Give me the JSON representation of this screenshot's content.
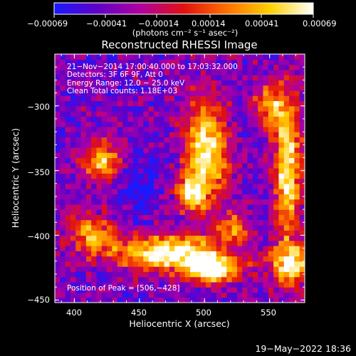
{
  "chart_data": {
    "type": "heatmap",
    "title": "Reconstructed RHESSI Image",
    "xlabel": "Heliocentric X (arcsec)",
    "ylabel": "Heliocentric Y (arcsec)",
    "xlim": [
      385,
      577
    ],
    "ylim": [
      -452,
      -260
    ],
    "x_ticks": [
      400,
      450,
      500,
      550
    ],
    "y_ticks": [
      -450,
      -400,
      -350,
      -300
    ],
    "x_tick_labels": [
      "400",
      "450",
      "500",
      "550"
    ],
    "y_tick_labels": [
      "−450",
      "−400",
      "−350",
      "−300"
    ],
    "colorbar": {
      "ticks": [
        -0.00069,
        -0.00041,
        -0.00014,
        0.00014,
        0.00041,
        0.00069
      ],
      "tick_labels": [
        "−0.00069",
        "−0.00041",
        "−0.00014",
        "0.00014",
        "0.00041",
        "0.00069"
      ],
      "units_label": "(photons cm⁻² s⁻¹ asec⁻²)",
      "colormap": [
        "#1a1aff",
        "#6000c8",
        "#b000a0",
        "#e01010",
        "#ff7000",
        "#ffd000",
        "#ffffff"
      ]
    },
    "annotations": [
      "21−Nov−2014 17:00:40.000 to 17:03:32.000",
      "Detectors: 3F 6F 9F, Att 0",
      "Energy Range: 12.0 − 25.0 keV",
      "Clean     Total counts: 1.18E+03"
    ],
    "peak_label": "Position of Peak = [506,−428]",
    "peak_position": [
      506,
      -428
    ],
    "emission_regions": [
      {
        "cx": 500,
        "cy": -335,
        "rx": 16,
        "ry": 38,
        "level": 0.9
      },
      {
        "cx": 488,
        "cy": -368,
        "rx": 12,
        "ry": 14,
        "level": 0.7
      },
      {
        "cx": 470,
        "cy": -415,
        "rx": 42,
        "ry": 14,
        "level": 0.95
      },
      {
        "cx": 505,
        "cy": -428,
        "rx": 20,
        "ry": 10,
        "level": 1.0
      },
      {
        "cx": 420,
        "cy": -345,
        "rx": 14,
        "ry": 16,
        "level": 0.75
      },
      {
        "cx": 412,
        "cy": -400,
        "rx": 18,
        "ry": 14,
        "level": 0.65
      },
      {
        "cx": 562,
        "cy": -350,
        "rx": 10,
        "ry": 55,
        "level": 0.9
      },
      {
        "cx": 548,
        "cy": -302,
        "rx": 12,
        "ry": 18,
        "level": 0.65
      },
      {
        "cx": 565,
        "cy": -425,
        "rx": 16,
        "ry": 16,
        "level": 0.8
      },
      {
        "cx": 520,
        "cy": -395,
        "rx": 12,
        "ry": 12,
        "level": 0.5
      }
    ],
    "negative_regions": [
      {
        "cx": 445,
        "cy": -360,
        "rx": 20,
        "ry": 26,
        "level": 0.8
      },
      {
        "cx": 530,
        "cy": -318,
        "rx": 12,
        "ry": 12,
        "level": 0.5
      }
    ]
  },
  "footer": {
    "date": "19−May−2022 18:36"
  }
}
